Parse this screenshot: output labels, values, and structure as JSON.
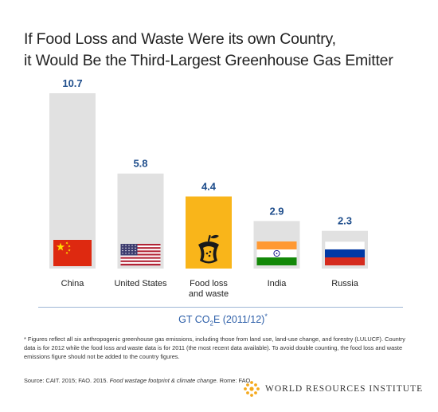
{
  "title_lines": [
    "If Food Loss and Waste Were its own Country,",
    "it Would Be the Third-Largest Greenhouse Gas Emitter"
  ],
  "chart_data": {
    "type": "bar",
    "categories": [
      "China",
      "United States",
      "Food loss and waste",
      "India",
      "Russia"
    ],
    "category_label_lines": [
      [
        "China"
      ],
      [
        "United States"
      ],
      [
        "Food loss",
        "and waste"
      ],
      [
        "India"
      ],
      [
        "Russia"
      ]
    ],
    "values": [
      10.7,
      5.8,
      4.4,
      2.9,
      2.3
    ],
    "value_labels": [
      "10.7",
      "5.8",
      "4.4",
      "2.9",
      "2.3"
    ],
    "ylim": [
      0,
      10.7
    ],
    "grid": false,
    "bar_colors": [
      "#e1e1e1",
      "#e1e1e1",
      "#f9b51a",
      "#e1e1e1",
      "#e1e1e1"
    ],
    "value_label_color": "#1f4e8c",
    "bar_icons": [
      "china-flag-icon",
      "usa-flag-icon",
      "apple-core-icon",
      "india-flag-icon",
      "russia-flag-icon"
    ]
  },
  "unit_label": {
    "prefix": "GT CO",
    "sub": "2",
    "mid": "E (2011/12)",
    "sup": "*"
  },
  "footnote": "* Figures reflect all six anthropogenic greenhouse gas emissions, including those from land use, land-use change, and forestry (LULUCF).  Country data is for 2012 while the food loss and waste data is for 2011 (the most recent data available). To avoid double counting, the food loss and waste emissions figure should not be added to the country figures.",
  "source": {
    "prefix": "Source: CAIT. 2015; FAO. 2015. ",
    "italic": "Food wastage footprint & climate change.",
    "suffix": " Rome: FAO."
  },
  "logo": {
    "text": "WORLD RESOURCES INSTITUTE",
    "mark_color": "#f4a91d"
  }
}
